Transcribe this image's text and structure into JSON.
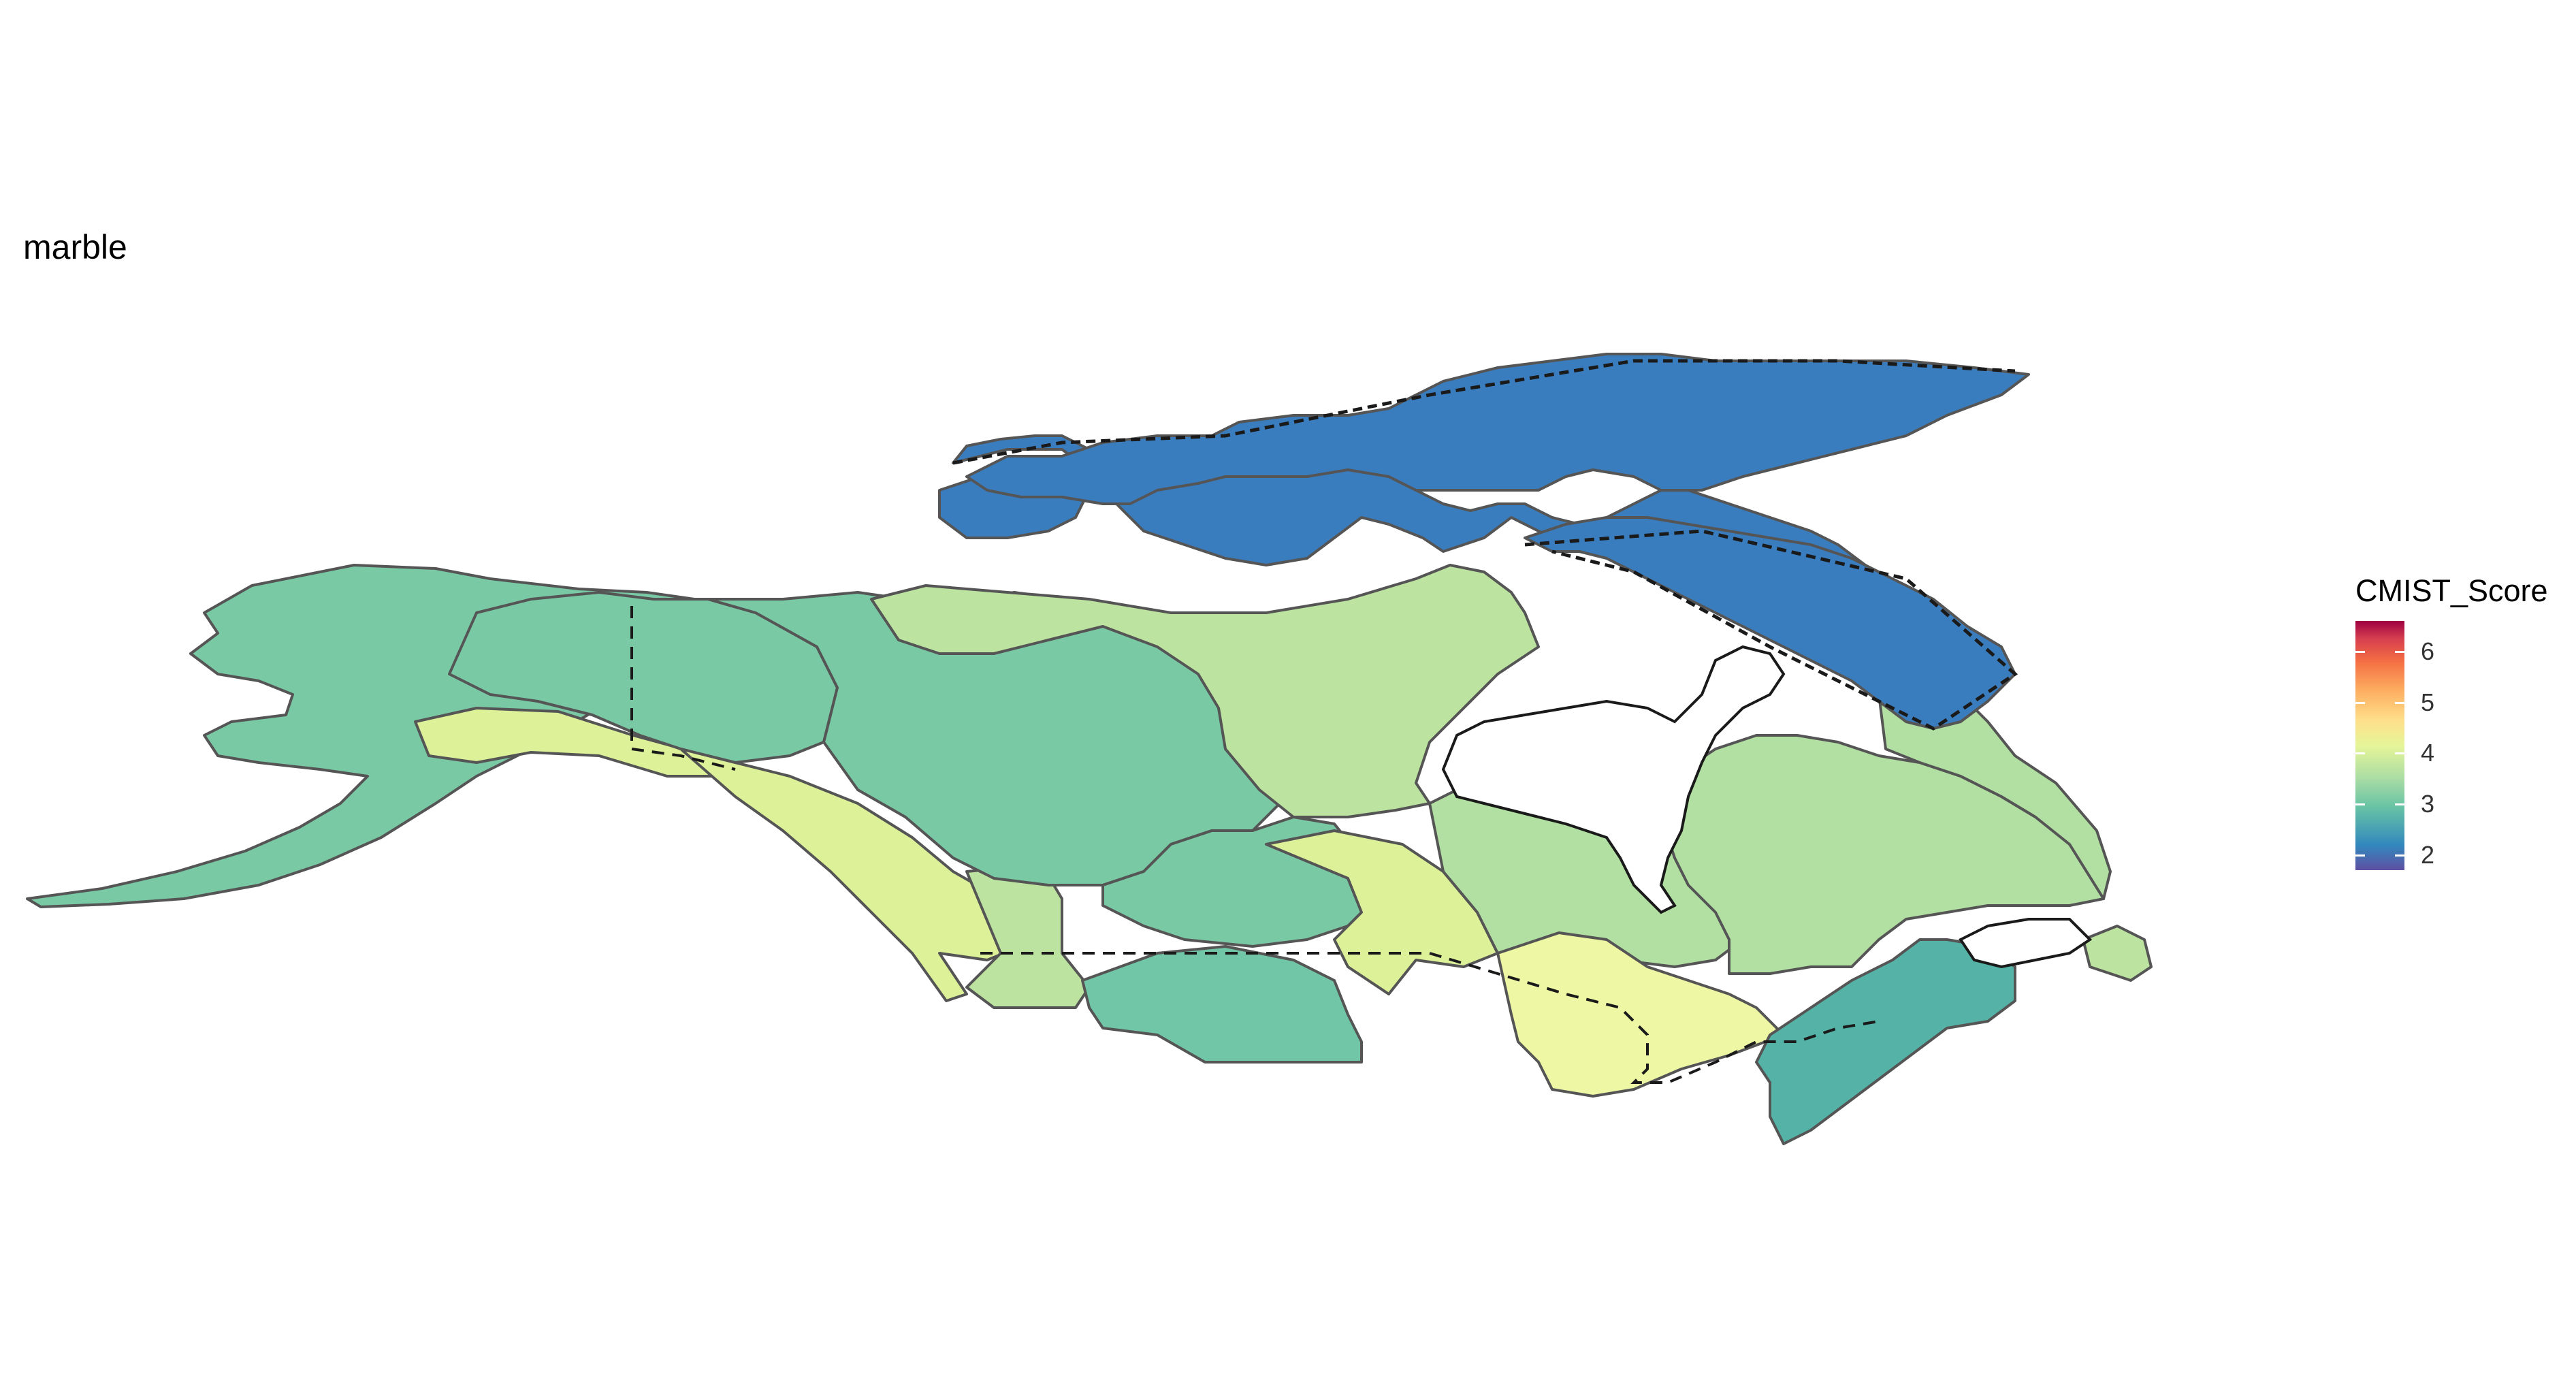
{
  "title": "marble",
  "legend": {
    "title": "CMIST_Score",
    "min": 1.7,
    "max": 6.6,
    "ticks": [
      {
        "value": 2,
        "label": "2"
      },
      {
        "value": 3,
        "label": "3"
      },
      {
        "value": 4,
        "label": "4"
      },
      {
        "value": 5,
        "label": "5"
      },
      {
        "value": 6,
        "label": "6"
      }
    ],
    "palette": "Spectral (reversed)"
  },
  "map": {
    "region_fill_colors": {
      "arctic": "#3a7dbf",
      "teal_green": "#79c9a5",
      "medium_teal": "#70c6a7",
      "dark_teal": "#54b3a6",
      "light_green": "#b2e0a2",
      "light_green_2": "#bde3a0",
      "yellow_green": "#dcf198",
      "pale_yellow": "#eef7a4"
    }
  }
}
